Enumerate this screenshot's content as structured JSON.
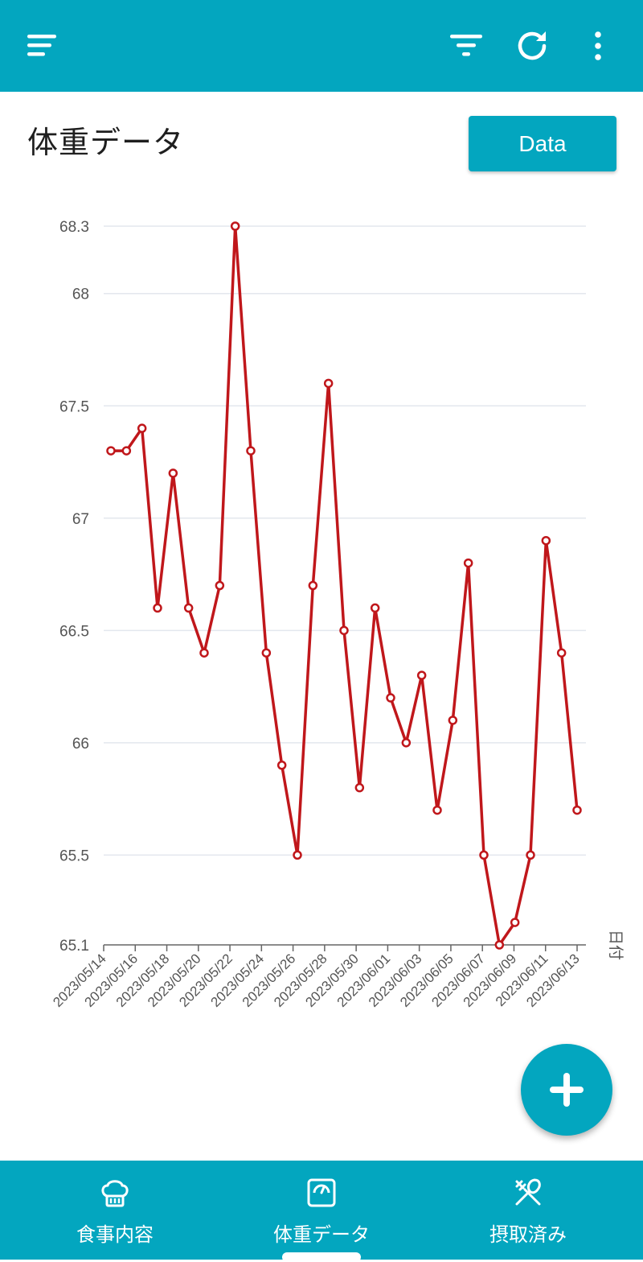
{
  "appbar": {
    "menu_icon": "sort-menu-icon",
    "filter_icon": "filter-icon",
    "refresh_icon": "refresh-icon",
    "more_icon": "more-vert-icon"
  },
  "page": {
    "title": "体重データ",
    "data_button_label": "Data"
  },
  "colors": {
    "primary": "#03a6bf",
    "line": "#c0171b",
    "grid": "#e3e7ee"
  },
  "chart_data": {
    "type": "line",
    "title": "",
    "xlabel": "日付",
    "ylabel": "",
    "ylim": [
      65.1,
      68.3
    ],
    "yticks": [
      68.3,
      68,
      67.5,
      67,
      66.5,
      66,
      65.5,
      65.1
    ],
    "grid": true,
    "x_tick_labels": [
      "2023/05/14",
      "2023/05/16",
      "2023/05/18",
      "2023/05/20",
      "2023/05/22",
      "2023/05/24",
      "2023/05/26",
      "2023/05/28",
      "2023/05/30",
      "2023/06/01",
      "2023/06/03",
      "2023/06/05",
      "2023/06/07",
      "2023/06/09",
      "2023/06/11",
      "2023/06/13"
    ],
    "series": [
      {
        "values": [
          67.3,
          67.3,
          67.4,
          66.6,
          67.2,
          66.6,
          66.4,
          66.7,
          68.3,
          67.3,
          66.4,
          65.9,
          65.5,
          66.7,
          67.6,
          66.5,
          65.8,
          66.6,
          66.2,
          66.0,
          66.3,
          65.7,
          66.1,
          66.8,
          65.5,
          65.1,
          65.2,
          65.5,
          66.9,
          66.4,
          65.7
        ]
      }
    ]
  },
  "fab": {
    "icon": "plus-icon"
  },
  "bottom_nav": {
    "items": [
      {
        "label": "食事内容",
        "icon": "chef-hat-icon"
      },
      {
        "label": "体重データ",
        "icon": "scale-icon"
      },
      {
        "label": "摂取済み",
        "icon": "utensils-crossed-icon"
      }
    ]
  }
}
